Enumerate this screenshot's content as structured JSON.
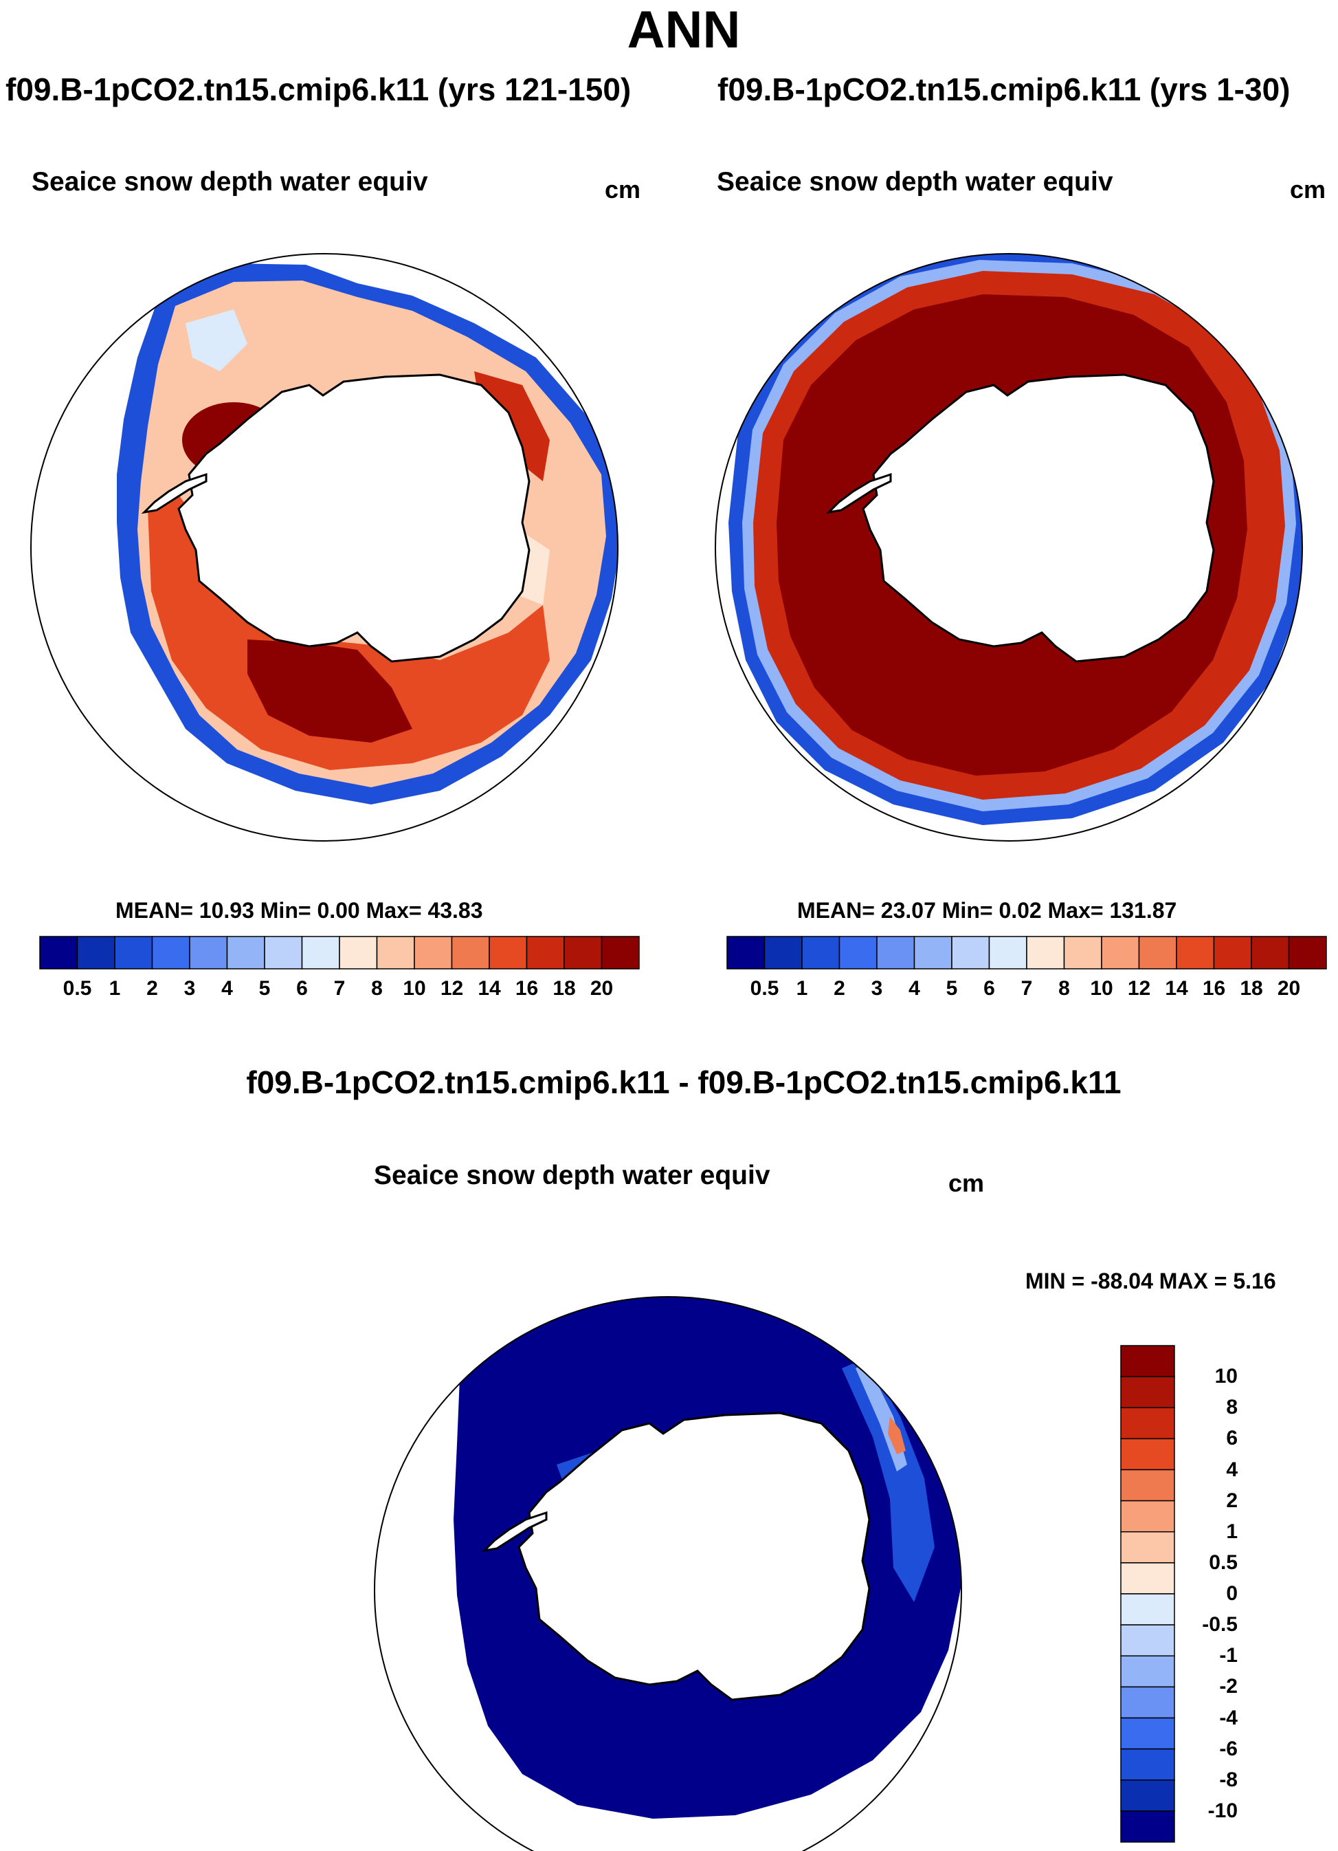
{
  "main_title": "ANN",
  "panels": [
    {
      "case_title": "f09.B-1pCO2.tn15.cmip6.k11 (yrs 121-150)",
      "var_title": "Seaice snow depth water equiv",
      "units": "cm",
      "stats": "MEAN=  10.93  Min=    0.00  Max=  43.83"
    },
    {
      "case_title": "f09.B-1pCO2.tn15.cmip6.k11 (yrs 1-30)",
      "var_title": "Seaice snow depth water equiv",
      "units": "cm",
      "stats": "MEAN=  23.07  Min=    0.02  Max= 131.87"
    },
    {
      "case_title": "f09.B-1pCO2.tn15.cmip6.k11 - f09.B-1pCO2.tn15.cmip6.k11",
      "var_title": "Seaice snow depth water equiv",
      "units": "cm",
      "stats": "MIN = -88.04 MAX =    5.16"
    }
  ],
  "colorbar_abs": {
    "levels": [
      "0.5",
      "1",
      "2",
      "3",
      "4",
      "5",
      "6",
      "7",
      "8",
      "10",
      "12",
      "14",
      "16",
      "18",
      "20"
    ],
    "colors": [
      "#00008b",
      "#0a2fb0",
      "#1d4fd8",
      "#3a6cf0",
      "#6a92f5",
      "#94b4f8",
      "#bcd2fb",
      "#dcebfc",
      "#fde8d8",
      "#fbc7a8",
      "#f7a07a",
      "#f07a50",
      "#e54a22",
      "#cc2a10",
      "#ad1408",
      "#8b0000"
    ]
  },
  "colorbar_diff": {
    "levels": [
      "10",
      "8",
      "6",
      "4",
      "2",
      "1",
      "0.5",
      "0",
      "-0.5",
      "-1",
      "-2",
      "-4",
      "-6",
      "-8",
      "-10"
    ],
    "colors": [
      "#8b0000",
      "#ad1408",
      "#cc2a10",
      "#e54a22",
      "#f07a50",
      "#f7a07a",
      "#fbc7a8",
      "#fde8d8",
      "#dcebfc",
      "#bcd2fb",
      "#94b4f8",
      "#6a92f5",
      "#3a6cf0",
      "#1d4fd8",
      "#0a2fb0",
      "#00008b"
    ]
  },
  "chart_data": [
    {
      "type": "heatmap",
      "projection": "south-polar-stereographic",
      "title": "Seaice snow depth water equiv",
      "subtitle": "f09.B-1pCO2.tn15.cmip6.k11 (yrs 121-150)",
      "units": "cm",
      "mean": 10.93,
      "min": 0.0,
      "max": 43.83,
      "contour_levels": [
        0.5,
        1,
        2,
        3,
        4,
        5,
        6,
        7,
        8,
        10,
        12,
        14,
        16,
        18,
        20
      ]
    },
    {
      "type": "heatmap",
      "projection": "south-polar-stereographic",
      "title": "Seaice snow depth water equiv",
      "subtitle": "f09.B-1pCO2.tn15.cmip6.k11 (yrs 1-30)",
      "units": "cm",
      "mean": 23.07,
      "min": 0.02,
      "max": 131.87,
      "contour_levels": [
        0.5,
        1,
        2,
        3,
        4,
        5,
        6,
        7,
        8,
        10,
        12,
        14,
        16,
        18,
        20
      ]
    },
    {
      "type": "heatmap",
      "projection": "south-polar-stereographic",
      "title": "Seaice snow depth water equiv",
      "subtitle": "f09.B-1pCO2.tn15.cmip6.k11 - f09.B-1pCO2.tn15.cmip6.k11",
      "units": "cm",
      "min": -88.04,
      "max": 5.16,
      "contour_levels": [
        -10,
        -8,
        -6,
        -4,
        -2,
        -1,
        -0.5,
        0,
        0.5,
        1,
        2,
        4,
        6,
        8,
        10
      ]
    }
  ]
}
